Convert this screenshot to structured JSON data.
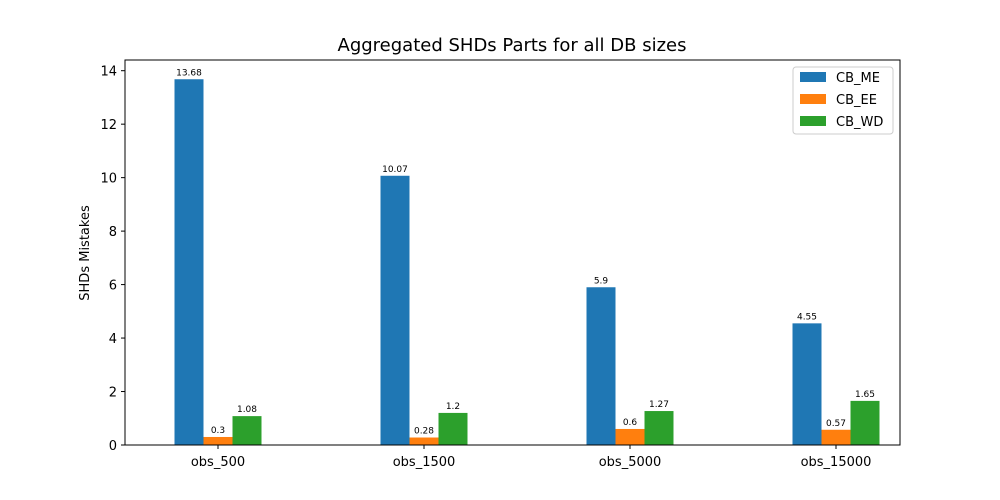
{
  "chart_data": {
    "type": "bar",
    "title": "Aggregated SHDs Parts for all DB sizes",
    "xlabel": "",
    "ylabel": "SHDs Mistakes",
    "categories": [
      "obs_500",
      "obs_1500",
      "obs_5000",
      "obs_15000"
    ],
    "ylim": [
      0,
      14.4
    ],
    "yticks": [
      0,
      2,
      4,
      6,
      8,
      10,
      12,
      14
    ],
    "grid": false,
    "legend_position": "top-right",
    "series": [
      {
        "name": "CB_ME",
        "color": "#1f77b4",
        "values": [
          13.68,
          10.07,
          5.9,
          4.55
        ],
        "labels": [
          "13.68",
          "10.07",
          "5.9",
          "4.55"
        ]
      },
      {
        "name": "CB_EE",
        "color": "#ff7f0e",
        "values": [
          0.3,
          0.28,
          0.6,
          0.57
        ],
        "labels": [
          "0.3",
          "0.28",
          "0.6",
          "0.57"
        ]
      },
      {
        "name": "CB_WD",
        "color": "#2ca02c",
        "values": [
          1.08,
          1.2,
          1.27,
          1.65
        ],
        "labels": [
          "1.08",
          "1.2",
          "1.27",
          "1.65"
        ]
      }
    ]
  }
}
